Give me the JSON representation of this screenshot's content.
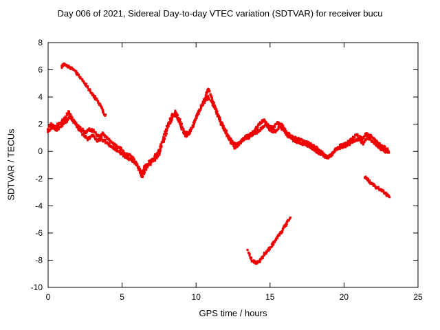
{
  "chart_data": {
    "type": "scatter",
    "title": "Day 006 of 2021, Sidereal Day-to-day VTEC variation (SDTVAR) for receiver bucu",
    "xlabel": "GPS time / hours",
    "ylabel": "SDTVAR / TECUs",
    "xlim": [
      0,
      25
    ],
    "ylim": [
      -10,
      8
    ],
    "xticks": [
      0,
      5,
      10,
      15,
      20,
      25
    ],
    "yticks": [
      -10,
      -8,
      -6,
      -4,
      -2,
      0,
      2,
      4,
      6,
      8
    ],
    "grid": false,
    "legend": "none",
    "point_color": "#ee0000",
    "series": [
      {
        "name": "main-band-trace-1",
        "points": [
          [
            0,
            1.7
          ],
          [
            0.2,
            2.0
          ],
          [
            0.5,
            1.8
          ],
          [
            0.8,
            2.1
          ],
          [
            1.1,
            2.4
          ],
          [
            1.4,
            2.9
          ],
          [
            1.6,
            2.4
          ],
          [
            1.9,
            2.0
          ],
          [
            2.2,
            1.7
          ],
          [
            2.5,
            1.4
          ],
          [
            2.8,
            1.6
          ],
          [
            3.1,
            1.5
          ],
          [
            3.4,
            1.1
          ],
          [
            3.7,
            1.3
          ],
          [
            4.0,
            1.0
          ],
          [
            4.3,
            0.6
          ],
          [
            4.6,
            0.4
          ],
          [
            4.9,
            0.2
          ],
          [
            5.2,
            -0.2
          ],
          [
            5.5,
            -0.3
          ],
          [
            5.8,
            -0.6
          ],
          [
            6.1,
            -1.2
          ],
          [
            6.35,
            -1.9
          ],
          [
            6.6,
            -1.3
          ],
          [
            6.9,
            -0.7
          ],
          [
            7.2,
            -0.6
          ],
          [
            7.5,
            -0.2
          ],
          [
            7.8,
            0.8
          ],
          [
            8.1,
            1.8
          ],
          [
            8.4,
            2.5
          ],
          [
            8.6,
            2.9
          ],
          [
            8.9,
            2.3
          ],
          [
            9.2,
            1.4
          ],
          [
            9.5,
            1.3
          ],
          [
            9.8,
            1.9
          ],
          [
            10.1,
            2.7
          ],
          [
            10.4,
            3.4
          ],
          [
            10.7,
            4.3
          ],
          [
            10.85,
            4.6
          ],
          [
            11.0,
            4.1
          ],
          [
            11.3,
            3.2
          ],
          [
            11.6,
            2.4
          ],
          [
            11.9,
            1.7
          ],
          [
            12.2,
            1.1
          ],
          [
            12.5,
            0.6
          ],
          [
            12.8,
            0.5
          ],
          [
            13.1,
            0.8
          ],
          [
            13.4,
            1.1
          ],
          [
            13.7,
            1.3
          ],
          [
            14.0,
            1.6
          ],
          [
            14.3,
            2.0
          ],
          [
            14.6,
            2.3
          ],
          [
            14.9,
            1.9
          ],
          [
            15.2,
            1.7
          ],
          [
            15.5,
            2.1
          ],
          [
            15.8,
            1.9
          ],
          [
            16.1,
            1.4
          ],
          [
            16.4,
            1.1
          ],
          [
            16.7,
            1.0
          ],
          [
            17.0,
            0.9
          ],
          [
            17.3,
            0.7
          ],
          [
            17.6,
            0.6
          ],
          [
            17.9,
            0.4
          ],
          [
            18.2,
            0.2
          ],
          [
            18.5,
            -0.1
          ],
          [
            18.8,
            -0.4
          ],
          [
            19.1,
            -0.3
          ],
          [
            19.4,
            0.1
          ],
          [
            19.7,
            0.4
          ],
          [
            20.0,
            0.5
          ],
          [
            20.3,
            0.7
          ],
          [
            20.6,
            1.0
          ],
          [
            20.9,
            1.2
          ],
          [
            21.2,
            0.9
          ],
          [
            21.5,
            1.3
          ],
          [
            21.8,
            1.1
          ],
          [
            22.1,
            0.8
          ],
          [
            22.4,
            0.5
          ],
          [
            22.7,
            0.3
          ],
          [
            23.0,
            0.1
          ]
        ]
      },
      {
        "name": "main-band-trace-2",
        "points": [
          [
            0,
            1.5
          ],
          [
            0.3,
            1.8
          ],
          [
            0.6,
            1.6
          ],
          [
            0.9,
            1.9
          ],
          [
            1.2,
            2.2
          ],
          [
            1.5,
            2.6
          ],
          [
            1.8,
            2.1
          ],
          [
            2.1,
            1.6
          ],
          [
            2.4,
            1.2
          ],
          [
            2.7,
            0.9
          ],
          [
            3.0,
            1.2
          ],
          [
            3.3,
            0.8
          ],
          [
            3.6,
            0.9
          ],
          [
            3.9,
            0.7
          ],
          [
            4.2,
            0.4
          ],
          [
            4.5,
            0.2
          ],
          [
            4.8,
            0.0
          ],
          [
            5.1,
            -0.3
          ],
          [
            5.4,
            -0.5
          ],
          [
            5.7,
            -0.7
          ],
          [
            6.0,
            -1.0
          ],
          [
            6.3,
            -1.6
          ],
          [
            6.6,
            -1.0
          ],
          [
            6.9,
            -0.9
          ],
          [
            7.2,
            -0.4
          ],
          [
            7.5,
            0.1
          ],
          [
            7.8,
            1.0
          ],
          [
            8.1,
            2.0
          ],
          [
            8.4,
            2.7
          ],
          [
            8.7,
            2.6
          ],
          [
            9.0,
            1.8
          ],
          [
            9.3,
            1.1
          ],
          [
            9.6,
            1.5
          ],
          [
            9.9,
            2.2
          ],
          [
            10.2,
            3.0
          ],
          [
            10.5,
            3.6
          ],
          [
            10.8,
            4.0
          ],
          [
            11.1,
            3.6
          ],
          [
            11.4,
            2.8
          ],
          [
            11.7,
            2.0
          ],
          [
            12.0,
            1.4
          ],
          [
            12.3,
            0.8
          ],
          [
            12.6,
            0.3
          ],
          [
            12.9,
            0.5
          ],
          [
            13.2,
            0.9
          ],
          [
            13.5,
            1.0
          ],
          [
            13.8,
            1.2
          ],
          [
            14.1,
            1.4
          ],
          [
            14.4,
            1.7
          ],
          [
            14.7,
            2.0
          ],
          [
            15.0,
            1.6
          ],
          [
            15.3,
            1.4
          ],
          [
            15.6,
            1.8
          ],
          [
            15.9,
            1.6
          ],
          [
            16.2,
            1.1
          ],
          [
            16.5,
            0.9
          ],
          [
            16.8,
            0.7
          ],
          [
            17.1,
            0.6
          ],
          [
            17.4,
            0.5
          ],
          [
            17.7,
            0.3
          ],
          [
            18.0,
            0.1
          ],
          [
            18.3,
            -0.1
          ],
          [
            18.6,
            -0.3
          ],
          [
            18.9,
            -0.5
          ],
          [
            19.2,
            -0.2
          ],
          [
            19.5,
            0.2
          ],
          [
            19.8,
            0.3
          ],
          [
            20.1,
            0.4
          ],
          [
            20.4,
            0.6
          ],
          [
            20.7,
            0.8
          ],
          [
            21.0,
            0.9
          ],
          [
            21.3,
            0.6
          ],
          [
            21.6,
            1.0
          ],
          [
            21.9,
            0.8
          ],
          [
            22.2,
            0.5
          ],
          [
            22.5,
            0.2
          ],
          [
            22.8,
            0.0
          ],
          [
            23.0,
            -0.1
          ]
        ]
      },
      {
        "name": "upper-left-arc",
        "points": [
          [
            0.9,
            6.2
          ],
          [
            1.1,
            6.4
          ],
          [
            1.3,
            6.3
          ],
          [
            1.6,
            6.1
          ],
          [
            1.9,
            5.8
          ],
          [
            2.2,
            5.4
          ],
          [
            2.5,
            5.0
          ],
          [
            2.8,
            4.5
          ],
          [
            3.0,
            4.2
          ],
          [
            3.2,
            3.9
          ],
          [
            3.5,
            3.4
          ],
          [
            3.7,
            3.0
          ],
          [
            3.85,
            2.7
          ]
        ]
      },
      {
        "name": "lower-dip-segment",
        "points": [
          [
            13.5,
            -7.2
          ],
          [
            13.7,
            -7.9
          ],
          [
            13.9,
            -8.1
          ],
          [
            14.1,
            -8.2
          ],
          [
            14.35,
            -8.0
          ],
          [
            14.6,
            -7.6
          ],
          [
            14.9,
            -7.2
          ],
          [
            15.2,
            -6.8
          ],
          [
            15.5,
            -6.3
          ],
          [
            15.8,
            -5.9
          ],
          [
            16.1,
            -5.3
          ],
          [
            16.35,
            -4.9
          ]
        ]
      },
      {
        "name": "lower-right-segment",
        "points": [
          [
            21.4,
            -1.9
          ],
          [
            21.7,
            -2.2
          ],
          [
            22.0,
            -2.5
          ],
          [
            22.3,
            -2.7
          ],
          [
            22.6,
            -2.9
          ],
          [
            22.9,
            -3.2
          ],
          [
            23.05,
            -3.3
          ]
        ]
      }
    ]
  }
}
